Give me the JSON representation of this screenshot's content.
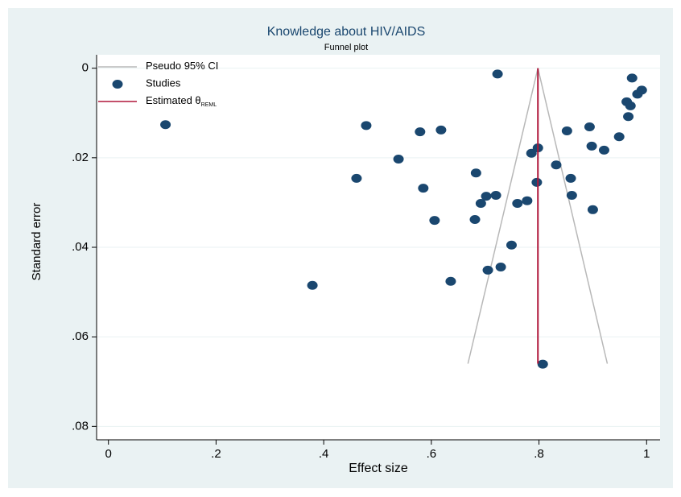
{
  "chart_data": {
    "type": "scatter",
    "title": "Knowledge about HIV/AIDS",
    "subtitle": "Funnel plot",
    "x_label": "Effect size",
    "y_label": "Standard error",
    "xlim": [
      -0.022,
      1.025
    ],
    "ylim": [
      -0.003,
      0.083
    ],
    "y_reversed": true,
    "xticks": [
      0,
      {
        "value": 0.2,
        "label": ".2"
      },
      {
        "value": 0.4,
        "label": ".4"
      },
      {
        "value": 0.6,
        "label": ".6"
      },
      {
        "value": 0.8,
        "label": ".8"
      },
      1
    ],
    "yticks": [
      0,
      {
        "value": 0.02,
        "label": ".02"
      },
      {
        "value": 0.04,
        "label": ".04"
      },
      {
        "value": 0.06,
        "label": ".06"
      },
      {
        "value": 0.08,
        "label": ".08"
      }
    ],
    "grid": true,
    "legend": "top-left",
    "series": [
      {
        "name": "Pseudo 95% CI",
        "kind": "line",
        "color": "#b8b8b8",
        "x": [
          0.668,
          0.798,
          0.927
        ],
        "values": [
          0.066,
          0,
          0.066
        ]
      },
      {
        "name": "Studies",
        "kind": "points",
        "color": "#1a476f",
        "x": [
          0.106,
          0.379,
          0.461,
          0.479,
          0.539,
          0.579,
          0.585,
          0.606,
          0.618,
          0.636,
          0.681,
          0.683,
          0.692,
          0.702,
          0.705,
          0.72,
          0.723,
          0.729,
          0.749,
          0.76,
          0.778,
          0.786,
          0.796,
          0.798,
          0.807,
          0.832,
          0.852,
          0.859,
          0.861,
          0.894,
          0.898,
          0.9,
          0.921,
          0.949,
          0.963,
          0.966,
          0.97,
          0.973,
          0.983,
          0.991
        ],
        "values": [
          0.0126,
          0.0485,
          0.0246,
          0.0128,
          0.0203,
          0.0142,
          0.0268,
          0.034,
          0.0138,
          0.0476,
          0.0338,
          0.0234,
          0.0302,
          0.0286,
          0.0451,
          0.0284,
          0.0013,
          0.0444,
          0.0395,
          0.0302,
          0.0296,
          0.019,
          0.0255,
          0.0178,
          0.0661,
          0.0216,
          0.014,
          0.0246,
          0.0284,
          0.0131,
          0.0174,
          0.0316,
          0.0183,
          0.0153,
          0.0075,
          0.0108,
          0.0084,
          0.0022,
          0.0058,
          0.0049
        ]
      },
      {
        "name": "Estimated θ",
        "subscript": "REML",
        "kind": "line",
        "color": "#b0173a",
        "x": [
          0.798,
          0.798
        ],
        "values": [
          0,
          0.066
        ]
      }
    ]
  }
}
